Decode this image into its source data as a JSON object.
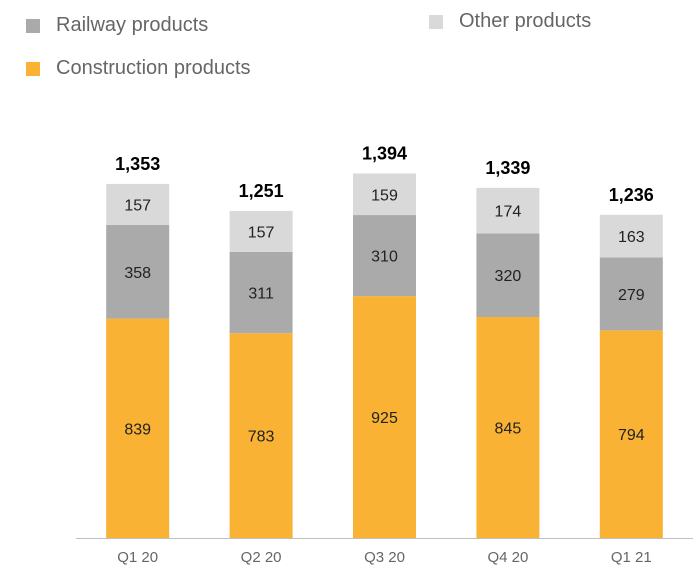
{
  "chart_data": {
    "type": "bar",
    "stacked": true,
    "categories": [
      "Q1 20",
      "Q2 20",
      "Q3 20",
      "Q4 20",
      "Q1 21"
    ],
    "series": [
      {
        "name": "Construction products",
        "color": "#F9B233",
        "values": [
          839,
          783,
          925,
          845,
          794
        ]
      },
      {
        "name": "Railway products",
        "color": "#AAAAAB",
        "values": [
          358,
          311,
          310,
          320,
          279
        ]
      },
      {
        "name": "Other products",
        "color": "#D9D9D9",
        "values": [
          157,
          157,
          159,
          174,
          163
        ]
      }
    ],
    "totals": [
      "1,353",
      "1,251",
      "1,394",
      "1,339",
      "1,236"
    ],
    "segment_labels": [
      [
        "839",
        "783",
        "925",
        "845",
        "794"
      ],
      [
        "358",
        "311",
        "310",
        "320",
        "279"
      ],
      [
        "157",
        "157",
        "159",
        "174",
        "163"
      ]
    ],
    "legend": {
      "railway": "Railway products",
      "other": "Other products",
      "construction": "Construction products"
    },
    "title": "",
    "xlabel": "",
    "ylabel": "",
    "ylim": [
      0,
      1640
    ],
    "grid": false,
    "legend_position": "top-left"
  }
}
